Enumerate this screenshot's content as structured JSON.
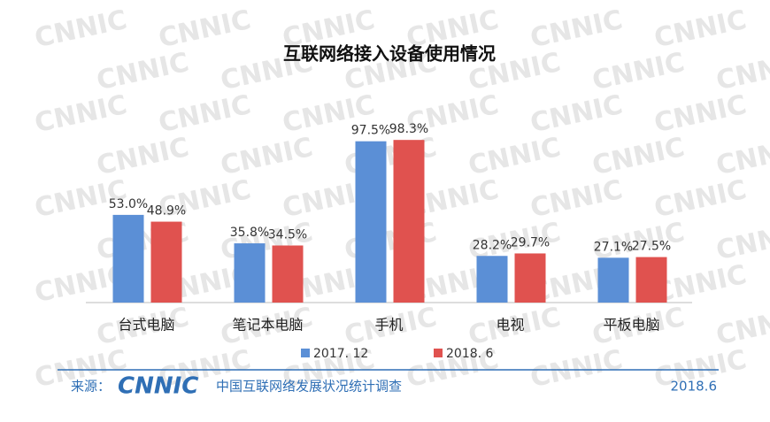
{
  "chart_data": {
    "type": "bar",
    "title": "互联网络接入设备使用情况",
    "categories": [
      "台式电脑",
      "笔记本电脑",
      "手机",
      "电视",
      "平板电脑"
    ],
    "series": [
      {
        "name": "2017. 12",
        "color": "#5b8fd6",
        "values": [
          53.0,
          35.8,
          97.5,
          28.2,
          27.1
        ],
        "value_labels": [
          "53.0%",
          "35.8%",
          "97.5%",
          "28.2%",
          "27.1%"
        ]
      },
      {
        "name": "2018. 6",
        "color": "#e0524f",
        "values": [
          48.9,
          34.5,
          98.3,
          29.7,
          27.5
        ],
        "value_labels": [
          "48.9%",
          "34.5%",
          "98.3%",
          "29.7%",
          "27.5%"
        ]
      }
    ],
    "ylim": [
      0,
      100
    ]
  },
  "footer": {
    "source_label": "来源：",
    "logo": "CNNIC",
    "source": "中国互联网络发展状况统计调查",
    "date": "2018.6"
  },
  "watermark": "CNNIC"
}
